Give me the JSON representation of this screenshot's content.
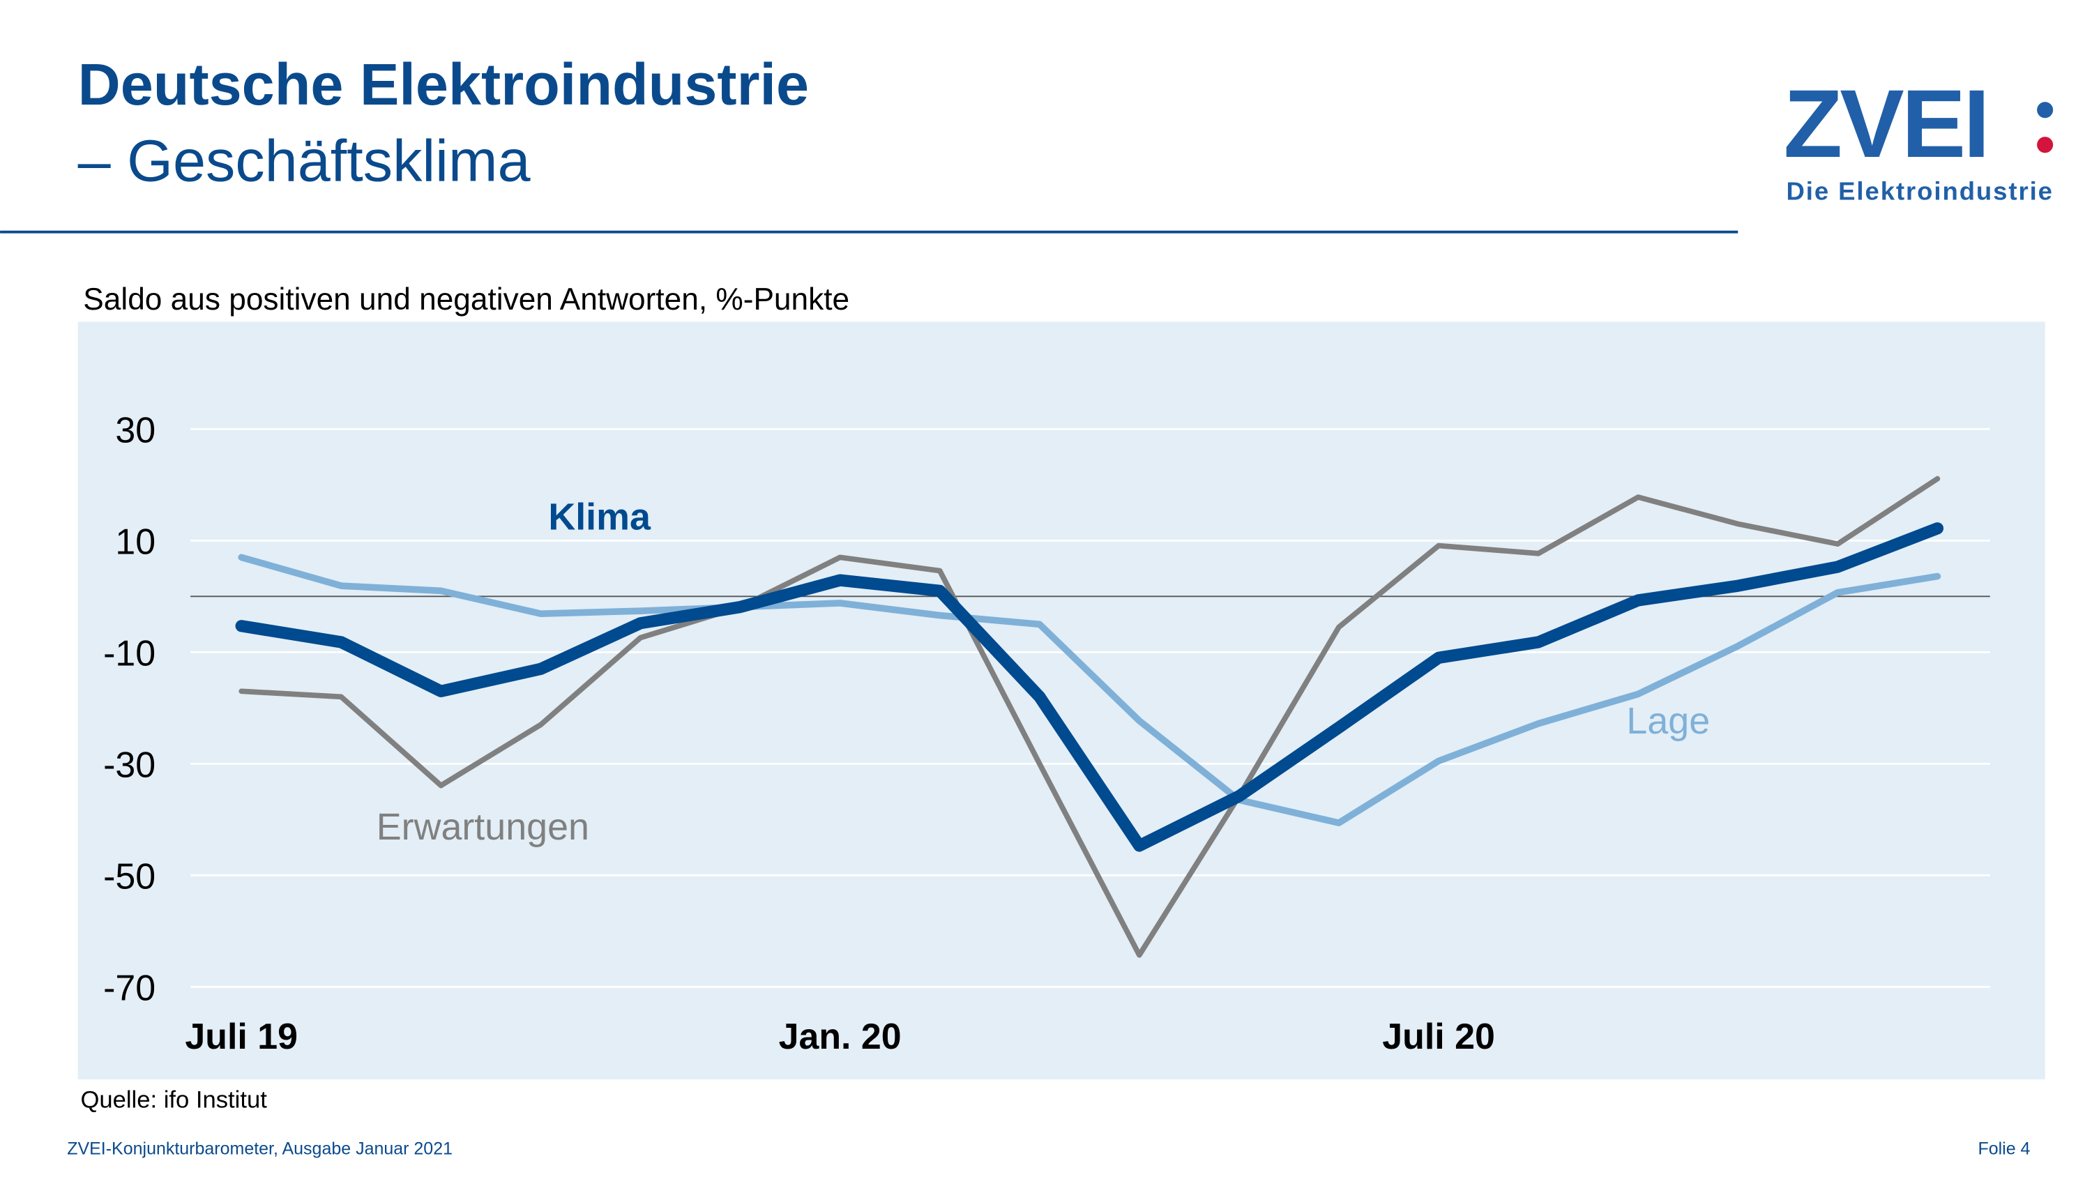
{
  "header": {
    "title": "Deutsche Elektroindustrie",
    "subtitle": "– Geschäftsklima",
    "logo": "ZVEI",
    "logo_tagline": "Die Elektroindustrie"
  },
  "chart_data": {
    "type": "line",
    "y_label": "Saldo aus positiven und negativen Antworten, %-Punkte",
    "categories": [
      "Juli 19",
      null,
      null,
      null,
      null,
      null,
      "Jan. 20",
      null,
      null,
      null,
      null,
      null,
      "Juli 20",
      null,
      null,
      null,
      null,
      null
    ],
    "series": [
      {
        "name": "Klima",
        "color": "#004a8f",
        "values": [
          -5.3,
          -8.2,
          -17,
          -13,
          -4.8,
          -1.9,
          2.9,
          1.0,
          -18,
          -44.7,
          -35.8,
          -23.5,
          -11,
          -8.2,
          -0.7,
          1.9,
          5.3,
          12.2
        ]
      },
      {
        "name": "Lage",
        "color": "#7fb0d8",
        "values": [
          7,
          1.9,
          1,
          -3.1,
          -2.6,
          -1.9,
          -1.2,
          -3.4,
          -5,
          -22.3,
          -36.5,
          -40.6,
          -29.5,
          -22.8,
          -17.5,
          -8.9,
          0.7,
          3.6
        ]
      },
      {
        "name": "Erwartungen",
        "color": "#808080",
        "values": [
          -17,
          -18,
          -33.9,
          -23,
          -7.4,
          -1.9,
          7,
          4.6,
          -30,
          -64.3,
          -35.8,
          -5.5,
          9.1,
          7.7,
          17.8,
          13,
          9.4,
          21.1
        ]
      }
    ],
    "ylim": [
      -70,
      30
    ],
    "yticks": [
      30,
      10,
      -10,
      -30,
      -50,
      -70
    ],
    "grid": true,
    "source": "Quelle: ifo Institut"
  },
  "footer": {
    "left": "ZVEI-Konjunkturbarometer, Ausgabe Januar 2021",
    "right": "Folie 4"
  }
}
